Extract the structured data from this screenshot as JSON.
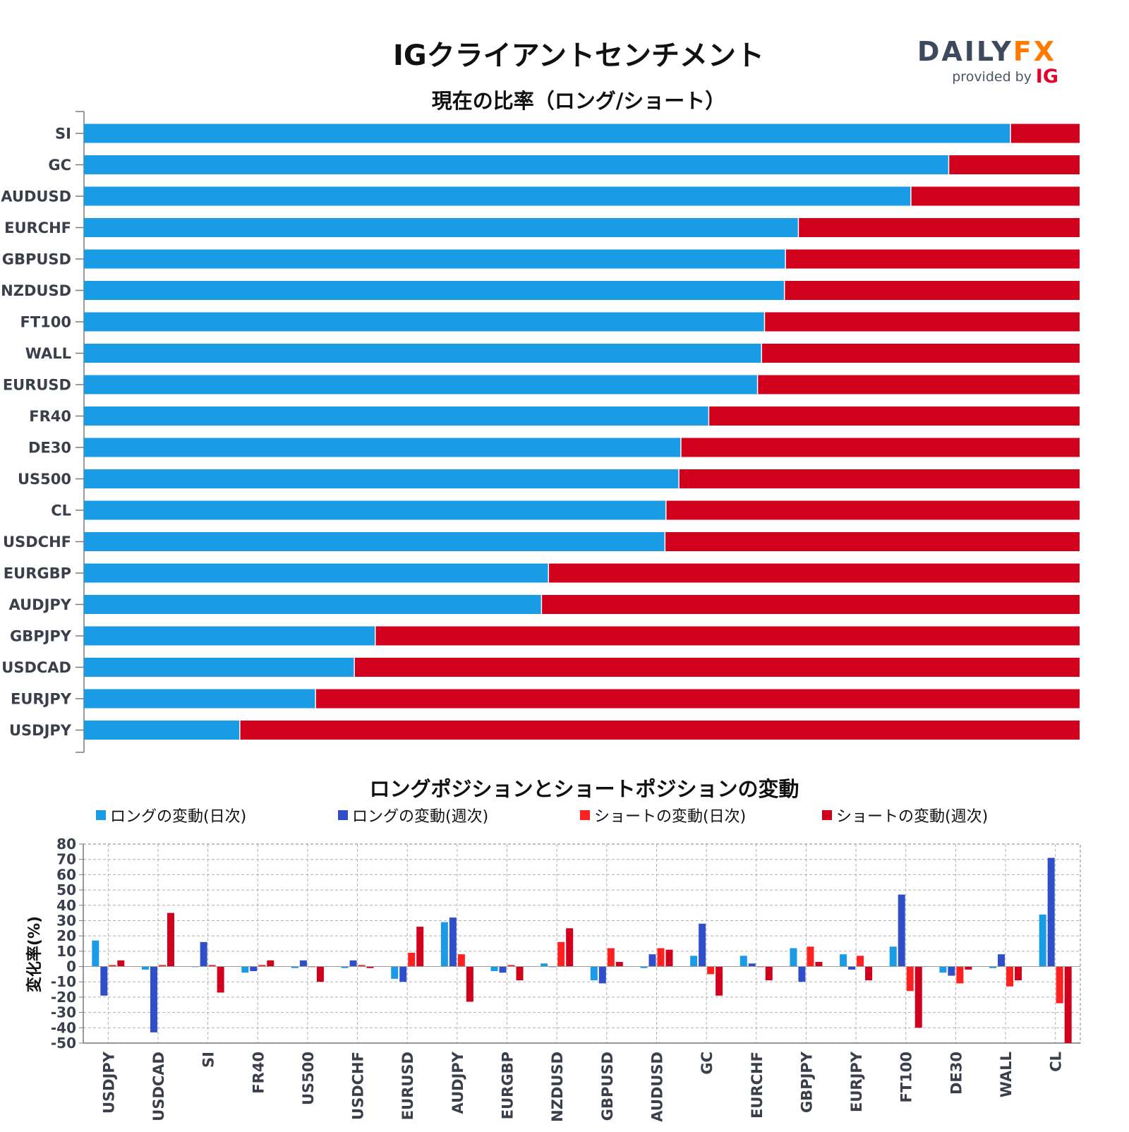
{
  "title": "IGクライアントセンチメント",
  "logo": {
    "word": "DAILYFX",
    "word_dark": "DAILY",
    "word_accent": "FX",
    "provided_by": "provided by",
    "brand": "IG"
  },
  "colors": {
    "long_bar": "#1a9be6",
    "short_bar": "#d1001c",
    "long_daily": "#1a9be6",
    "long_weekly": "#2f4ec9",
    "short_daily": "#ff2020",
    "short_weekly": "#d1001c",
    "logo_dark": "#3d4a5c",
    "logo_accent": "#ff7a00",
    "ig_red": "#e4002b"
  },
  "chart_data": [
    {
      "type": "bar",
      "orientation": "horizontal",
      "stacked": true,
      "title": "現在の比率（ロング/ショート）",
      "categories": [
        "SI",
        "GC",
        "AUDUSD",
        "EURCHF",
        "GBPUSD",
        "NZDUSD",
        "FT100",
        "WALL",
        "EURUSD",
        "FR40",
        "DE30",
        "US500",
        "CL",
        "USDCHF",
        "EURGBP",
        "AUDJPY",
        "GBPJPY",
        "USDCAD",
        "EURJPY",
        "USDJPY"
      ],
      "series": [
        {
          "values": [
            93,
            86.8,
            83,
            71.7,
            70.4,
            70.3,
            68.3,
            68,
            67.6,
            62.7,
            59.9,
            59.7,
            58.4,
            58.3,
            46.6,
            45.9,
            29.2,
            27.1,
            23.2,
            15.6
          ]
        },
        {
          "values": [
            7,
            13.2,
            17,
            28.3,
            29.6,
            29.7,
            31.7,
            32,
            32.4,
            37.3,
            40.1,
            40.3,
            41.6,
            41.7,
            53.4,
            54.1,
            70.8,
            72.9,
            76.8,
            84.4
          ]
        }
      ],
      "xlim": [
        0,
        100
      ]
    },
    {
      "type": "bar",
      "title": "ロングポジションとショートポジションの変動",
      "ylabel": "変化率(%)",
      "ylim": [
        -50,
        80
      ],
      "yticks": [
        "80",
        "70",
        "60",
        "50",
        "40",
        "30",
        "20",
        "10",
        "0",
        "-10",
        "-20",
        "-30",
        "-40",
        "-50"
      ],
      "grid": true,
      "legend_position": "top",
      "categories": [
        "USDJPY",
        "USDCAD",
        "SI",
        "FR40",
        "US500",
        "USDCHF",
        "EURUSD",
        "AUDJPY",
        "EURGBP",
        "NZDUSD",
        "GBPUSD",
        "AUDUSD",
        "GC",
        "EURCHF",
        "GBPJPY",
        "EURJPY",
        "FT100",
        "DE30",
        "WALL",
        "CL"
      ],
      "series": [
        {
          "name": "ロングの変動(日次)",
          "values": [
            17,
            -2,
            0,
            -4,
            -1,
            -1,
            -8,
            29,
            -3,
            2,
            -9,
            -1,
            7,
            7,
            12,
            8,
            13,
            -4,
            -1,
            34
          ]
        },
        {
          "name": "ロングの変動(週次)",
          "values": [
            -19,
            -43,
            16,
            -3,
            4,
            4,
            -10,
            32,
            -4,
            0,
            -11,
            8,
            28,
            2,
            -10,
            -2,
            47,
            -6,
            8,
            71
          ]
        },
        {
          "name": "ショートの変動(日次)",
          "values": [
            1,
            1,
            1,
            1,
            0,
            1,
            9,
            8,
            1,
            16,
            12,
            12,
            -5,
            0,
            13,
            7,
            -16,
            -11,
            -13,
            -24
          ]
        },
        {
          "name": "ショートの変動(週次)",
          "values": [
            4,
            35,
            -17,
            4,
            -10,
            -1,
            26,
            -23,
            -9,
            25,
            3,
            11,
            -19,
            -9,
            3,
            -9,
            -40,
            -2,
            -9,
            -50
          ]
        }
      ]
    }
  ]
}
